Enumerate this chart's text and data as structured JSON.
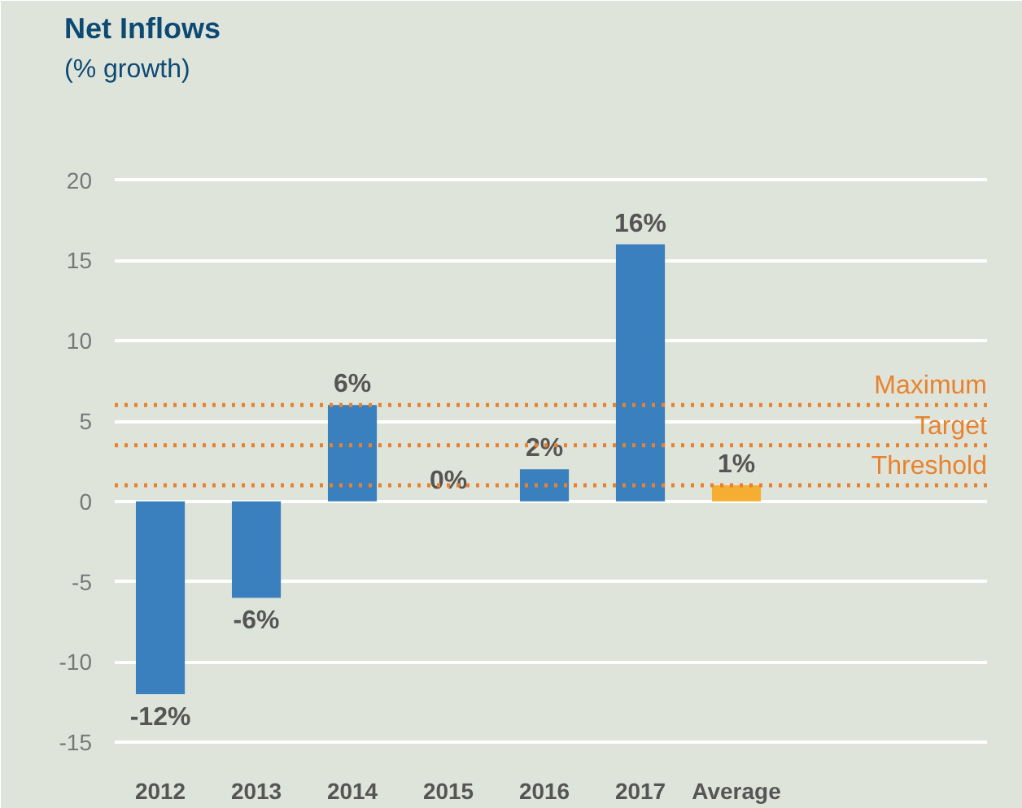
{
  "chart_data": {
    "type": "bar",
    "title": "Net Inflows",
    "subtitle": "(% growth)",
    "categories": [
      "2012",
      "2013",
      "2014",
      "2015",
      "2016",
      "2017",
      "Average"
    ],
    "values": [
      -12,
      -6,
      6,
      0,
      2,
      16,
      1
    ],
    "colors": [
      "#3a80bf",
      "#3a80bf",
      "#3a80bf",
      "#3a80bf",
      "#3a80bf",
      "#3a80bf",
      "#f5ae32"
    ],
    "value_labels": [
      "-12%",
      "-6%",
      "6%",
      "0%",
      "2%",
      "16%",
      "1%"
    ],
    "ylim": [
      -16,
      26
    ],
    "yticks": [
      {
        "value": -15,
        "label": "-15"
      },
      {
        "value": -10,
        "label": "-10"
      },
      {
        "value": -5,
        "label": "-5"
      },
      0,
      5,
      10,
      15,
      20
    ],
    "grid": "y",
    "ref_lines": [
      {
        "axis": "y",
        "value": 6,
        "label": "Maximum",
        "color": "#e8822e",
        "line_style": "dotted"
      },
      {
        "axis": "y",
        "value": 3.5,
        "label": "Target",
        "color": "#e8822e",
        "line_style": "dotted"
      },
      {
        "axis": "y",
        "value": 1,
        "label": "Threshold",
        "color": "#e8822e",
        "line_style": "dotted"
      }
    ]
  }
}
